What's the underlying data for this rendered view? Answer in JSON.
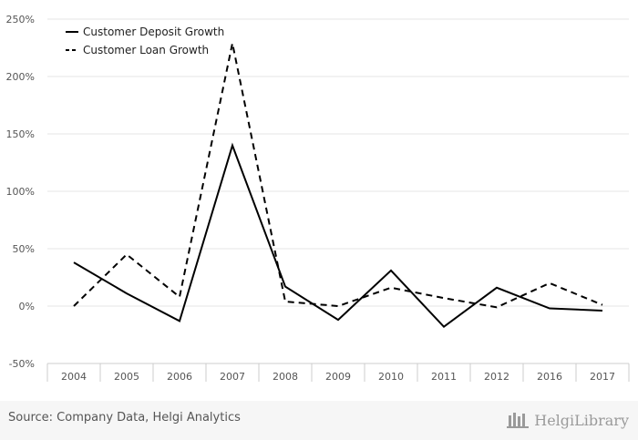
{
  "chart_data": {
    "type": "line",
    "categories": [
      "2004",
      "2005",
      "2006",
      "2007",
      "2008",
      "2009",
      "2010",
      "2011",
      "2012",
      "2016",
      "2017"
    ],
    "series": [
      {
        "name": "Customer Deposit Growth",
        "style": "solid",
        "color": "#000000",
        "values": [
          38,
          11,
          -13,
          140,
          17,
          -12,
          31,
          -18,
          16,
          -2,
          -4
        ]
      },
      {
        "name": "Customer Loan Growth",
        "style": "dashed",
        "color": "#000000",
        "values": [
          0,
          45,
          8,
          229,
          4,
          0,
          16,
          7,
          -1,
          20,
          1
        ]
      }
    ],
    "yticks": [
      "250%",
      "200%",
      "150%",
      "100%",
      "50%",
      "0%",
      "-50%"
    ],
    "ylim": [
      -50,
      250
    ],
    "grid": true,
    "legend": "top-left"
  },
  "footer": {
    "source": "Source: Company Data, Helgi Analytics",
    "brand": "HelgiLibrary"
  },
  "colors": {
    "grid": "#e6e6e6",
    "axis": "#cccccc",
    "footer_bg": "#f6f6f6"
  }
}
